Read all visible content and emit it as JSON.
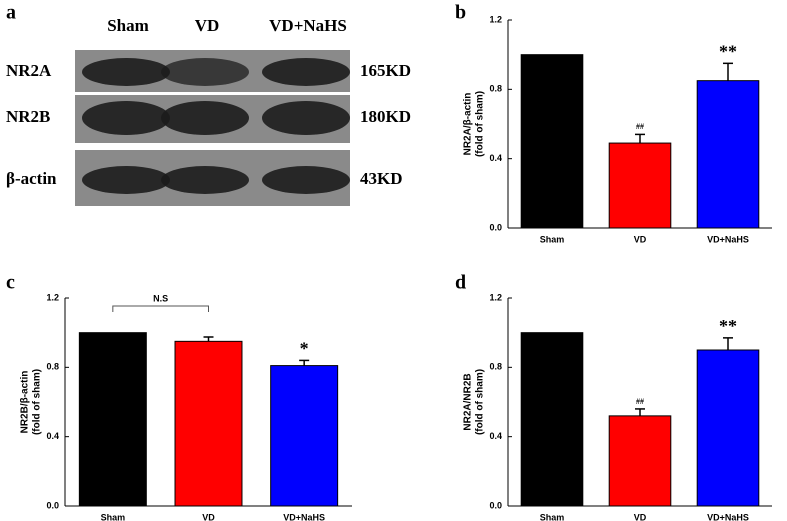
{
  "blot": {
    "letter": "a",
    "lanes": [
      "Sham",
      "VD",
      "VD+NaHS"
    ],
    "rows": [
      {
        "protein": "NR2A",
        "size": "165KD"
      },
      {
        "protein": "NR2B",
        "size": "180KD"
      },
      {
        "protein": "β-actin",
        "size": "43KD"
      }
    ]
  },
  "chart_data": [
    {
      "type": "bar",
      "letter": "b",
      "ylabel": [
        "NR2A/β-actin",
        "(fold of sham)"
      ],
      "categories": [
        "Sham",
        "VD",
        "VD+NaHS"
      ],
      "values": [
        1.0,
        0.49,
        0.85
      ],
      "errors": [
        0,
        0.05,
        0.1
      ],
      "colors": [
        "#000000",
        "#ff0000",
        "#0000ff"
      ],
      "ylim": [
        0,
        1.2
      ],
      "yticks": [
        {
          "value": 0,
          "label": "0.0"
        },
        0.4,
        0.8,
        1.2
      ],
      "annotations": [
        {
          "x": "VD",
          "text": "##"
        },
        {
          "x": "VD+NaHS",
          "text": "**"
        }
      ]
    },
    {
      "type": "bar",
      "letter": "c",
      "ylabel": [
        "NR2B/β-actin",
        "(fold of sham)"
      ],
      "categories": [
        "Sham",
        "VD",
        "VD+NaHS"
      ],
      "values": [
        1.0,
        0.95,
        0.81
      ],
      "errors": [
        0,
        0.025,
        0.03
      ],
      "colors": [
        "#000000",
        "#ff0000",
        "#0000ff"
      ],
      "ylim": [
        0,
        1.2
      ],
      "yticks": [
        {
          "value": 0,
          "label": "0.0"
        },
        0.4,
        0.8,
        1.2
      ],
      "annotations": [
        {
          "x": "VD+NaHS",
          "text": "*"
        }
      ],
      "brackets": [
        {
          "from": "Sham",
          "to": "VD",
          "text": "N.S"
        }
      ]
    },
    {
      "type": "bar",
      "letter": "d",
      "ylabel": [
        "NR2A/NR2B",
        "(fold of sham)"
      ],
      "categories": [
        "Sham",
        "VD",
        "VD+NaHS"
      ],
      "values": [
        1.0,
        0.52,
        0.9
      ],
      "errors": [
        0,
        0.04,
        0.07
      ],
      "colors": [
        "#000000",
        "#ff0000",
        "#0000ff"
      ],
      "ylim": [
        0,
        1.2
      ],
      "yticks": [
        {
          "value": 0,
          "label": "0.0"
        },
        0.4,
        0.8,
        1.2
      ],
      "annotations": [
        {
          "x": "VD",
          "text": "##"
        },
        {
          "x": "VD+NaHS",
          "text": "**"
        }
      ]
    }
  ]
}
